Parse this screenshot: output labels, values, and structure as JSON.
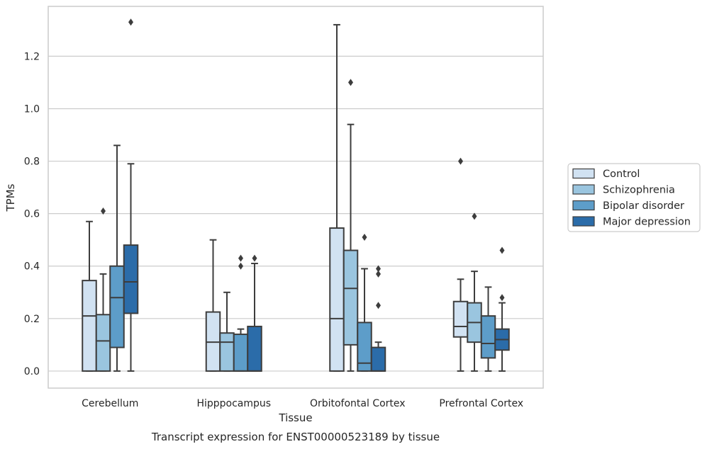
{
  "chart_data": {
    "type": "box",
    "title": "Transcript expression for ENST00000523189 by tissue",
    "xlabel": "Tissue",
    "ylabel": "TPMs",
    "ylim": [
      -0.065,
      1.39
    ],
    "yticks": [
      0.0,
      0.2,
      0.4,
      0.6,
      0.8,
      1.0,
      1.2
    ],
    "ytick_labels": [
      "0.0",
      "0.2",
      "0.4",
      "0.6",
      "0.8",
      "1.0",
      "1.2"
    ],
    "grid": "horizontal",
    "legend_position": "right",
    "categories": [
      "Cerebellum",
      "Hipppocampus",
      "Orbitofontal Cortex",
      "Prefrontal Cortex"
    ],
    "series": [
      {
        "name": "Control",
        "color": "#d1e2f2",
        "boxes": [
          {
            "whislo": 0.0,
            "q1": 0.0,
            "med": 0.21,
            "q3": 0.345,
            "whishi": 0.57,
            "fliers": []
          },
          {
            "whislo": 0.0,
            "q1": 0.0,
            "med": 0.11,
            "q3": 0.225,
            "whishi": 0.5,
            "fliers": []
          },
          {
            "whislo": 0.0,
            "q1": 0.0,
            "med": 0.2,
            "q3": 0.545,
            "whishi": 1.32,
            "fliers": []
          },
          {
            "whislo": 0.0,
            "q1": 0.13,
            "med": 0.17,
            "q3": 0.265,
            "whishi": 0.35,
            "fliers": [
              0.8
            ]
          }
        ]
      },
      {
        "name": "Schizophrenia",
        "color": "#9ac5df",
        "boxes": [
          {
            "whislo": 0.0,
            "q1": 0.0,
            "med": 0.115,
            "q3": 0.215,
            "whishi": 0.37,
            "fliers": [
              0.61
            ]
          },
          {
            "whislo": 0.0,
            "q1": 0.0,
            "med": 0.11,
            "q3": 0.145,
            "whishi": 0.3,
            "fliers": []
          },
          {
            "whislo": 0.0,
            "q1": 0.1,
            "med": 0.315,
            "q3": 0.46,
            "whishi": 0.94,
            "fliers": [
              1.1
            ]
          },
          {
            "whislo": 0.0,
            "q1": 0.11,
            "med": 0.185,
            "q3": 0.26,
            "whishi": 0.38,
            "fliers": [
              0.59
            ]
          }
        ]
      },
      {
        "name": "Bipolar disorder",
        "color": "#5d9dc9",
        "boxes": [
          {
            "whislo": 0.0,
            "q1": 0.09,
            "med": 0.28,
            "q3": 0.4,
            "whishi": 0.86,
            "fliers": []
          },
          {
            "whislo": 0.0,
            "q1": 0.0,
            "med": 0.0,
            "q3": 0.14,
            "whishi": 0.16,
            "fliers": [
              0.4,
              0.43
            ]
          },
          {
            "whislo": 0.0,
            "q1": 0.0,
            "med": 0.03,
            "q3": 0.185,
            "whishi": 0.39,
            "fliers": [
              0.51
            ]
          },
          {
            "whislo": 0.0,
            "q1": 0.05,
            "med": 0.105,
            "q3": 0.21,
            "whishi": 0.32,
            "fliers": []
          }
        ]
      },
      {
        "name": "Major depression",
        "color": "#2b6ca9",
        "boxes": [
          {
            "whislo": 0.0,
            "q1": 0.22,
            "med": 0.34,
            "q3": 0.48,
            "whishi": 0.79,
            "fliers": [
              1.33
            ]
          },
          {
            "whislo": 0.0,
            "q1": 0.0,
            "med": 0.0,
            "q3": 0.17,
            "whishi": 0.41,
            "fliers": [
              0.43
            ]
          },
          {
            "whislo": 0.0,
            "q1": 0.0,
            "med": 0.0,
            "q3": 0.09,
            "whishi": 0.11,
            "fliers": [
              0.25,
              0.37,
              0.39
            ]
          },
          {
            "whislo": 0.0,
            "q1": 0.08,
            "med": 0.12,
            "q3": 0.16,
            "whishi": 0.26,
            "fliers": [
              0.28,
              0.46
            ]
          }
        ]
      }
    ]
  }
}
